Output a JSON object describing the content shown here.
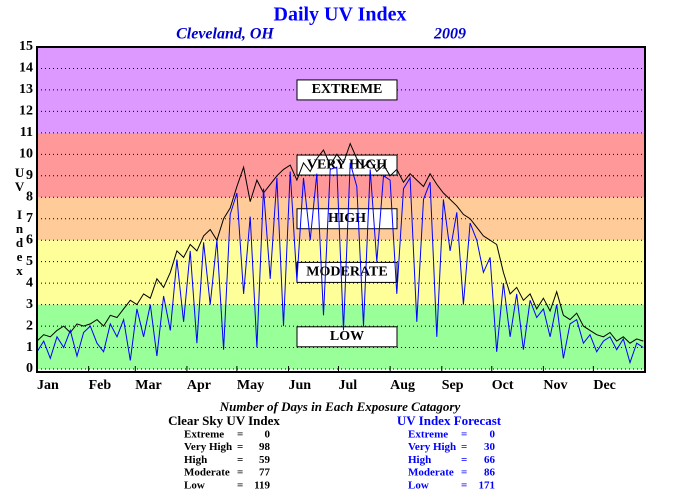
{
  "chart_data": {
    "type": "line",
    "title": "Daily UV Index",
    "subtitle_left": "Cleveland, OH",
    "subtitle_right": "2009",
    "y_label": "UV Index",
    "x": [
      1,
      5,
      9,
      13,
      17,
      21,
      25,
      29,
      33,
      37,
      41,
      45,
      49,
      53,
      57,
      61,
      65,
      69,
      73,
      77,
      81,
      85,
      89,
      93,
      97,
      101,
      105,
      109,
      113,
      117,
      121,
      125,
      129,
      133,
      137,
      141,
      145,
      149,
      153,
      157,
      161,
      165,
      169,
      173,
      177,
      181,
      185,
      189,
      193,
      197,
      201,
      205,
      209,
      213,
      217,
      221,
      225,
      229,
      233,
      237,
      241,
      245,
      249,
      253,
      257,
      261,
      265,
      269,
      273,
      277,
      281,
      285,
      289,
      293,
      297,
      301,
      305,
      309,
      313,
      317,
      321,
      325,
      329,
      333,
      337,
      341,
      345,
      349,
      353,
      357,
      361,
      365
    ],
    "series": [
      {
        "name": "Clear Sky UV Index",
        "color": "#000000",
        "values": [
          1.3,
          1.6,
          1.5,
          1.8,
          2.0,
          1.7,
          2.1,
          2.0,
          2.1,
          2.3,
          2.0,
          2.5,
          2.4,
          2.8,
          3.2,
          3.0,
          3.5,
          3.3,
          4.2,
          3.8,
          4.5,
          5.5,
          5.2,
          5.8,
          5.5,
          6.2,
          6.5,
          6.0,
          7.0,
          7.5,
          8.5,
          9.4,
          7.8,
          8.8,
          8.2,
          8.6,
          9.0,
          9.3,
          9.5,
          8.8,
          9.6,
          9.2,
          9.8,
          10.2,
          9.5,
          10.0,
          9.6,
          10.5,
          9.8,
          9.4,
          9.7,
          9.2,
          9.5,
          9.0,
          9.3,
          8.7,
          9.1,
          8.8,
          8.5,
          9.1,
          8.6,
          8.2,
          7.9,
          7.6,
          7.2,
          7.0,
          6.6,
          6.2,
          6.0,
          5.8,
          4.5,
          3.5,
          3.8,
          3.2,
          3.5,
          2.8,
          3.3,
          2.7,
          3.6,
          2.5,
          2.3,
          2.6,
          2.0,
          1.8,
          1.6,
          1.5,
          1.7,
          1.3,
          1.5,
          1.2,
          1.4,
          1.3
        ]
      },
      {
        "name": "UV Index Forecast",
        "color": "#0000ff",
        "values": [
          0.8,
          1.3,
          0.5,
          1.5,
          1.0,
          1.8,
          0.6,
          1.7,
          2.0,
          1.2,
          0.8,
          2.1,
          1.5,
          2.3,
          0.4,
          2.8,
          1.5,
          3.0,
          0.6,
          3.4,
          1.8,
          5.1,
          2.2,
          5.5,
          1.2,
          5.9,
          3.0,
          6.0,
          0.9,
          7.2,
          8.2,
          3.5,
          7.1,
          1.0,
          8.4,
          4.2,
          8.9,
          2.0,
          9.2,
          4.1,
          8.9,
          6.0,
          9.1,
          2.5,
          9.3,
          9.4,
          1.8,
          9.6,
          8.5,
          2.0,
          9.3,
          5.0,
          9.0,
          8.8,
          3.5,
          8.4,
          8.9,
          2.2,
          7.9,
          8.7,
          1.5,
          7.9,
          5.5,
          7.3,
          3.0,
          6.8,
          6.0,
          4.5,
          5.2,
          0.8,
          4.0,
          1.5,
          3.5,
          0.9,
          3.2,
          2.4,
          2.8,
          1.5,
          3.0,
          0.5,
          2.1,
          2.3,
          1.2,
          1.6,
          0.8,
          1.3,
          1.5,
          0.9,
          1.4,
          0.3,
          1.2,
          1.0
        ]
      }
    ],
    "xlim": [
      1,
      366
    ],
    "xticks": [
      {
        "value": 1,
        "label": "Jan"
      },
      {
        "value": 32,
        "label": "Feb"
      },
      {
        "value": 60,
        "label": "Mar"
      },
      {
        "value": 91,
        "label": "Apr"
      },
      {
        "value": 121,
        "label": "May"
      },
      {
        "value": 152,
        "label": "Jun"
      },
      {
        "value": 182,
        "label": "Jul"
      },
      {
        "value": 213,
        "label": "Aug"
      },
      {
        "value": 244,
        "label": "Sep"
      },
      {
        "value": 274,
        "label": "Oct"
      },
      {
        "value": 305,
        "label": "Nov"
      },
      {
        "value": 335,
        "label": "Dec"
      }
    ],
    "ylim": [
      0,
      15
    ],
    "yticks": [
      0,
      1,
      2,
      3,
      4,
      5,
      6,
      7,
      8,
      9,
      10,
      11,
      12,
      13,
      14,
      15
    ],
    "grid": true,
    "bands": [
      {
        "label": "LOW",
        "from": 0,
        "to": 3,
        "color": "#99ff99"
      },
      {
        "label": "MODERATE",
        "from": 3,
        "to": 6,
        "color": "#ffff99"
      },
      {
        "label": "HIGH",
        "from": 6,
        "to": 8,
        "color": "#ffcc99"
      },
      {
        "label": "VERY HIGH",
        "from": 8,
        "to": 11,
        "color": "#ff9999"
      },
      {
        "label": "EXTREME",
        "from": 11,
        "to": 15,
        "color": "#dd99ff"
      }
    ],
    "summary": {
      "title": "Number of Days in Each Exposure Catagory",
      "separator": "=",
      "tables": [
        {
          "title": "Clear Sky UV Index",
          "color": "#000000",
          "rows": [
            {
              "label": "Extreme",
              "value": 0
            },
            {
              "label": "Very High",
              "value": 98
            },
            {
              "label": "High",
              "value": 59
            },
            {
              "label": "Moderate",
              "value": 77
            },
            {
              "label": "Low",
              "value": 119
            }
          ]
        },
        {
          "title": "UV Index Forecast",
          "color": "#0000ff",
          "rows": [
            {
              "label": "Extreme",
              "value": 0
            },
            {
              "label": "Very High",
              "value": 30
            },
            {
              "label": "High",
              "value": 66
            },
            {
              "label": "Moderate",
              "value": 86
            },
            {
              "label": "Low",
              "value": 171
            }
          ]
        }
      ]
    }
  }
}
